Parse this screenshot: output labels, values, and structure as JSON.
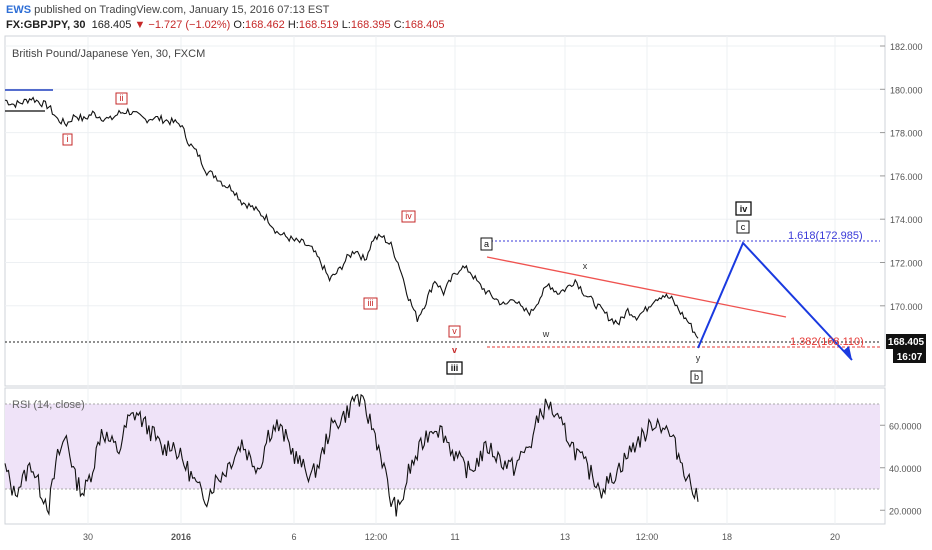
{
  "header": {
    "brand": "EWS",
    "published": "published on TradingView.com, January 15, 2016 07:13 EST",
    "symbol": "FX:GBPJPY, 30",
    "last": "168.405",
    "change_arrow": "▼",
    "change": "−1.727 (−1.02%)",
    "open_label": "O:",
    "open": "168.462",
    "high_label": "H:",
    "high": "168.519",
    "low_label": "L:",
    "low": "168.395",
    "close_label": "C:",
    "close": "168.405"
  },
  "chart_data": [
    {
      "type": "line",
      "title": "British Pound/Japanese Yen, 30, FXCM",
      "ylim": [
        167.6,
        182.2
      ],
      "yticks": [
        "182.000",
        "180.000",
        "178.000",
        "176.000",
        "174.000",
        "172.000",
        "170.000"
      ],
      "xticks": [
        "30",
        "2016",
        "6",
        "12:00",
        "11",
        "13",
        "12:00",
        "18",
        "20"
      ],
      "price_label": "168.405",
      "time_label": "16:07",
      "series": [
        {
          "values": [
            179.5,
            179.3,
            179.4,
            179.6,
            179.4,
            179.2,
            178.6,
            178.4,
            178.8,
            178.6,
            178.9,
            178.7,
            178.6,
            178.9,
            179.0,
            178.8,
            178.6,
            178.7,
            178.6,
            178.5,
            178.4,
            177.5,
            177.0,
            176.2,
            176.0,
            175.6,
            175.4,
            174.8,
            174.6,
            174.3,
            174.0,
            173.4,
            173.2,
            173.0,
            172.9,
            172.6,
            172.0,
            171.2,
            171.6,
            172.2,
            172.6,
            172.1,
            173.1,
            173.2,
            172.8,
            171.8,
            170.4,
            169.4,
            170.2,
            171.2,
            170.6,
            171.3,
            171.8,
            171.6,
            171.0,
            170.6,
            170.3,
            170.0,
            170.4,
            169.8,
            169.7,
            170.4,
            171.0,
            170.6,
            170.8,
            171.2,
            170.6,
            170.2,
            169.8,
            169.4,
            169.2,
            169.8,
            169.5,
            169.8,
            170.3,
            170.5,
            170.3,
            169.7,
            169.2,
            168.5
          ]
        }
      ],
      "annotations": {
        "wave_labels": [
          "i",
          "ii",
          "iii",
          "iv",
          "v",
          "iii",
          "a",
          "x",
          "w",
          "y",
          "b",
          "iv",
          "c"
        ],
        "fib_upper": "1.618(172.985)",
        "fib_lower": "1.382(168.110)",
        "projection": [
          168.4,
          172.9,
          167.9
        ]
      }
    },
    {
      "type": "line",
      "title": "RSI (14, close)",
      "ylim": [
        14,
        78
      ],
      "yticks": [
        "60.0000",
        "40.0000",
        "20.0000"
      ],
      "bands": [
        30,
        70
      ],
      "series": [
        {
          "values": [
            40,
            28,
            34,
            42,
            30,
            22,
            45,
            55,
            35,
            28,
            40,
            58,
            52,
            48,
            62,
            66,
            60,
            55,
            48,
            52,
            45,
            38,
            30,
            26,
            34,
            38,
            45,
            52,
            44,
            40,
            56,
            60,
            54,
            46,
            40,
            36,
            44,
            58,
            62,
            66,
            74,
            68,
            58,
            44,
            24,
            20,
            38,
            46,
            55,
            60,
            56,
            48,
            42,
            38,
            44,
            50,
            46,
            42,
            40,
            46,
            52,
            66,
            70,
            62,
            56,
            48,
            42,
            36,
            30,
            34,
            40,
            46,
            52,
            56,
            62,
            60,
            54,
            44,
            34,
            24
          ]
        }
      ]
    }
  ]
}
